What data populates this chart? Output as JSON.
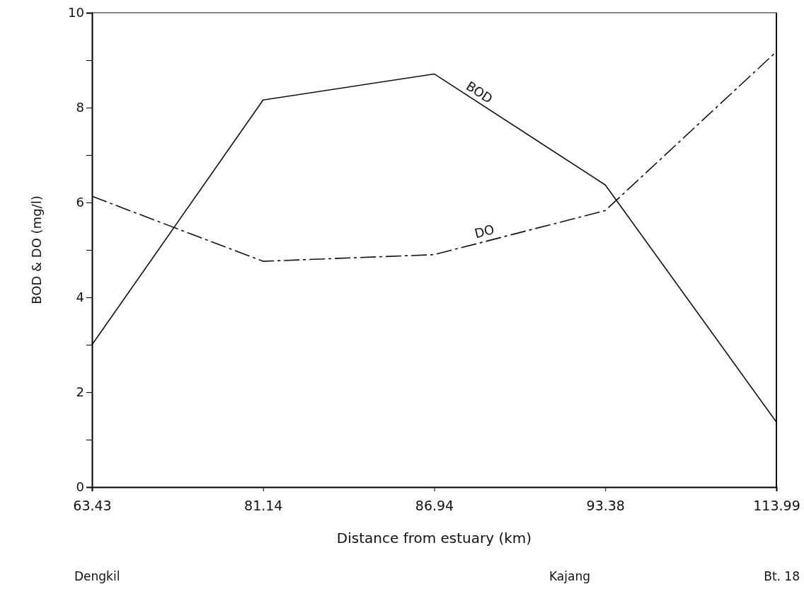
{
  "chart_data": {
    "type": "line",
    "xlabel": "Distance from estuary (km)",
    "ylabel": "BOD & DO (mg/l)",
    "categories": [
      "63.43",
      "81.14",
      "86.94",
      "93.38",
      "113.99"
    ],
    "series": [
      {
        "name": "BOD",
        "color": "#111111",
        "line_style": "solid",
        "values": [
          3.0,
          8.16,
          8.71,
          6.37,
          1.37
        ]
      },
      {
        "name": "DO",
        "color": "#111111",
        "line_style": "dashed",
        "values": [
          6.13,
          4.76,
          4.9,
          5.83,
          9.18
        ]
      }
    ],
    "ylim": [
      0,
      10
    ],
    "yticks": [
      0,
      {
        "value": 1,
        "label": null
      },
      2,
      {
        "value": 3,
        "label": null
      },
      4,
      {
        "value": 5,
        "label": null
      },
      6,
      {
        "value": 7,
        "label": null
      },
      8,
      {
        "value": 9,
        "label": null
      },
      10
    ],
    "annotations": [
      "Dengkil",
      "Kajang",
      "Bt. 18"
    ],
    "grid": false,
    "marker": "none"
  }
}
